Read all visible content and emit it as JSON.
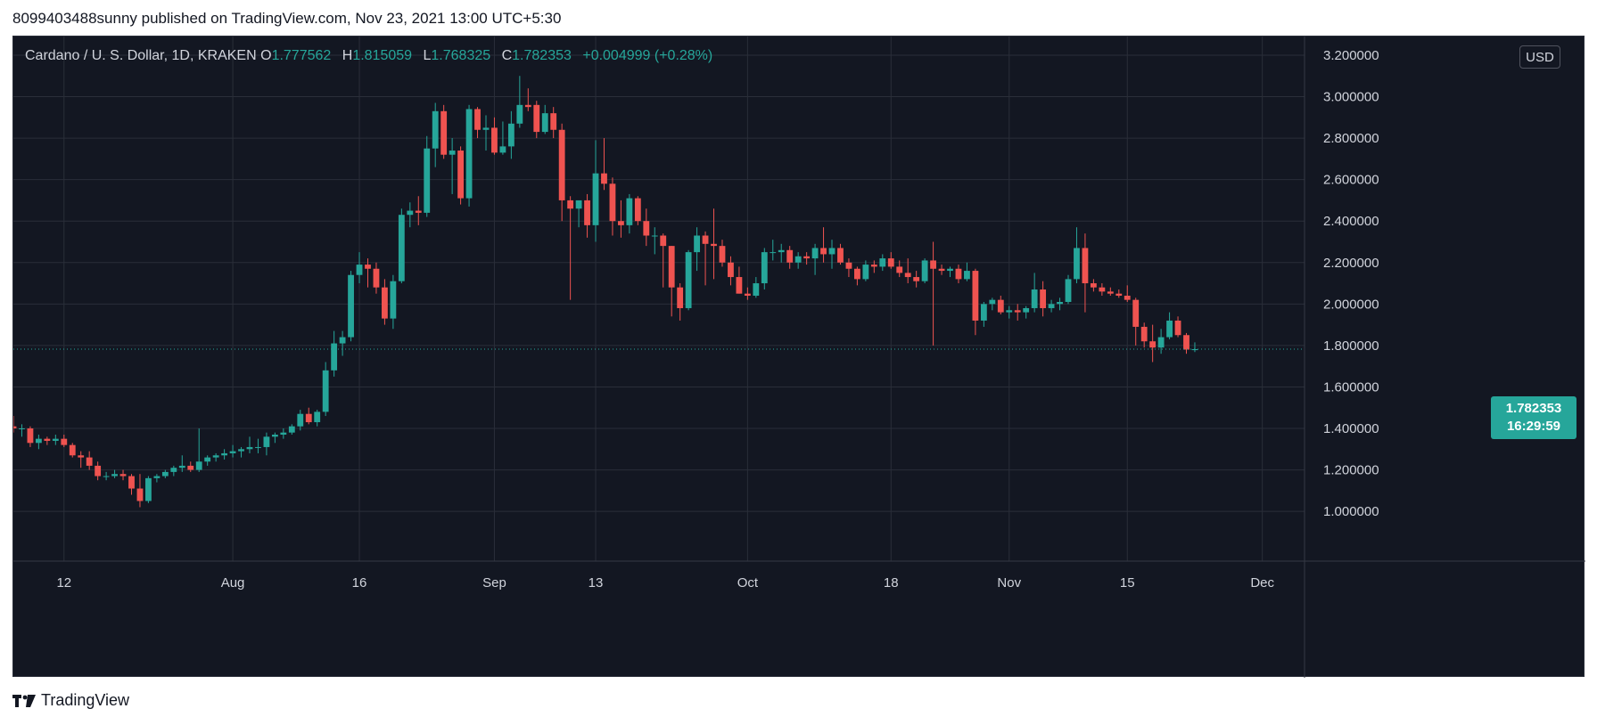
{
  "header": {
    "publish_text": "8099403488sunny published on TradingView.com, Nov 23, 2021 13:00 UTC+5:30"
  },
  "legend": {
    "symbol": "Cardano / U. S. Dollar, 1D, KRAKEN",
    "open_label": "O",
    "open": "1.777562",
    "high_label": "H",
    "high": "1.815059",
    "low_label": "L",
    "low": "1.768325",
    "close_label": "C",
    "close": "1.782353",
    "change": "+0.004999 (+0.28%)"
  },
  "currency_button": "USD",
  "last_price": {
    "price": "1.782353",
    "countdown": "16:29:59"
  },
  "footer": {
    "brand": "TradingView"
  },
  "colors": {
    "background": "#131722",
    "grid": "#2a2e39",
    "up": "#26a69a",
    "down": "#ef5350",
    "text": "#d1d4dc"
  },
  "chart_data": {
    "type": "candlestick",
    "y_tick_labels": [
      "1.000000",
      "1.200000",
      "1.400000",
      "1.600000",
      "1.800000",
      "2.000000",
      "2.200000",
      "2.400000",
      "2.600000",
      "2.800000",
      "3.000000",
      "3.200000"
    ],
    "y_ticks": [
      1.0,
      1.2,
      1.4,
      1.6,
      1.8,
      2.0,
      2.2,
      2.4,
      2.6,
      2.8,
      3.0,
      3.2
    ],
    "ylim": [
      0.76,
      3.29
    ],
    "x_labels": [
      {
        "date": "2021-07-12",
        "label": "12"
      },
      {
        "date": "2021-08-01",
        "label": "Aug"
      },
      {
        "date": "2021-08-16",
        "label": "16"
      },
      {
        "date": "2021-09-01",
        "label": "Sep"
      },
      {
        "date": "2021-09-13",
        "label": "13"
      },
      {
        "date": "2021-10-01",
        "label": "Oct"
      },
      {
        "date": "2021-10-18",
        "label": "18"
      },
      {
        "date": "2021-11-01",
        "label": "Nov"
      },
      {
        "date": "2021-11-15",
        "label": "15"
      },
      {
        "date": "2021-12-01",
        "label": "Dec"
      }
    ],
    "xlim": [
      "2021-07-06",
      "2021-12-06"
    ],
    "candles": [
      [
        "2021-07-06",
        1.41,
        1.46,
        1.38,
        1.4
      ],
      [
        "2021-07-07",
        1.4,
        1.42,
        1.36,
        1.4
      ],
      [
        "2021-07-08",
        1.4,
        1.41,
        1.31,
        1.33
      ],
      [
        "2021-07-09",
        1.33,
        1.37,
        1.3,
        1.35
      ],
      [
        "2021-07-10",
        1.35,
        1.36,
        1.32,
        1.34
      ],
      [
        "2021-07-11",
        1.34,
        1.37,
        1.32,
        1.35
      ],
      [
        "2021-07-12",
        1.35,
        1.37,
        1.31,
        1.32
      ],
      [
        "2021-07-13",
        1.32,
        1.33,
        1.26,
        1.27
      ],
      [
        "2021-07-14",
        1.27,
        1.29,
        1.21,
        1.26
      ],
      [
        "2021-07-15",
        1.26,
        1.29,
        1.2,
        1.22
      ],
      [
        "2021-07-16",
        1.22,
        1.24,
        1.15,
        1.17
      ],
      [
        "2021-07-17",
        1.17,
        1.19,
        1.15,
        1.17
      ],
      [
        "2021-07-18",
        1.17,
        1.2,
        1.16,
        1.18
      ],
      [
        "2021-07-19",
        1.18,
        1.2,
        1.15,
        1.17
      ],
      [
        "2021-07-20",
        1.17,
        1.18,
        1.08,
        1.11
      ],
      [
        "2021-07-21",
        1.11,
        1.18,
        1.02,
        1.05
      ],
      [
        "2021-07-22",
        1.05,
        1.17,
        1.04,
        1.16
      ],
      [
        "2021-07-23",
        1.16,
        1.18,
        1.14,
        1.17
      ],
      [
        "2021-07-24",
        1.17,
        1.2,
        1.16,
        1.19
      ],
      [
        "2021-07-25",
        1.19,
        1.22,
        1.17,
        1.21
      ],
      [
        "2021-07-26",
        1.21,
        1.27,
        1.19,
        1.22
      ],
      [
        "2021-07-27",
        1.22,
        1.24,
        1.19,
        1.2
      ],
      [
        "2021-07-28",
        1.2,
        1.4,
        1.19,
        1.24
      ],
      [
        "2021-07-29",
        1.24,
        1.27,
        1.22,
        1.26
      ],
      [
        "2021-07-30",
        1.26,
        1.28,
        1.24,
        1.27
      ],
      [
        "2021-07-31",
        1.27,
        1.3,
        1.25,
        1.28
      ],
      [
        "2021-08-01",
        1.28,
        1.32,
        1.26,
        1.29
      ],
      [
        "2021-08-02",
        1.29,
        1.31,
        1.26,
        1.3
      ],
      [
        "2021-08-03",
        1.3,
        1.36,
        1.28,
        1.31
      ],
      [
        "2021-08-04",
        1.31,
        1.35,
        1.28,
        1.31
      ],
      [
        "2021-08-05",
        1.31,
        1.38,
        1.27,
        1.36
      ],
      [
        "2021-08-06",
        1.36,
        1.38,
        1.33,
        1.37
      ],
      [
        "2021-08-07",
        1.37,
        1.4,
        1.35,
        1.38
      ],
      [
        "2021-08-08",
        1.38,
        1.42,
        1.37,
        1.41
      ],
      [
        "2021-08-09",
        1.41,
        1.49,
        1.39,
        1.47
      ],
      [
        "2021-08-10",
        1.47,
        1.5,
        1.42,
        1.43
      ],
      [
        "2021-08-11",
        1.43,
        1.49,
        1.41,
        1.48
      ],
      [
        "2021-08-12",
        1.48,
        1.72,
        1.46,
        1.68
      ],
      [
        "2021-08-13",
        1.68,
        1.87,
        1.65,
        1.81
      ],
      [
        "2021-08-14",
        1.81,
        1.87,
        1.75,
        1.84
      ],
      [
        "2021-08-15",
        1.84,
        2.16,
        1.82,
        2.14
      ],
      [
        "2021-08-16",
        2.14,
        2.25,
        2.1,
        2.19
      ],
      [
        "2021-08-17",
        2.19,
        2.22,
        2.08,
        2.17
      ],
      [
        "2021-08-18",
        2.17,
        2.2,
        2.05,
        2.08
      ],
      [
        "2021-08-19",
        2.08,
        2.12,
        1.9,
        1.93
      ],
      [
        "2021-08-20",
        1.93,
        2.14,
        1.88,
        2.11
      ],
      [
        "2021-08-21",
        2.11,
        2.46,
        2.1,
        2.43
      ],
      [
        "2021-08-22",
        2.43,
        2.49,
        2.37,
        2.45
      ],
      [
        "2021-08-23",
        2.45,
        2.52,
        2.38,
        2.44
      ],
      [
        "2021-08-24",
        2.44,
        2.81,
        2.42,
        2.75
      ],
      [
        "2021-08-25",
        2.75,
        2.97,
        2.66,
        2.93
      ],
      [
        "2021-08-26",
        2.93,
        2.96,
        2.7,
        2.72
      ],
      [
        "2021-08-27",
        2.72,
        2.8,
        2.53,
        2.74
      ],
      [
        "2021-08-28",
        2.74,
        2.76,
        2.48,
        2.51
      ],
      [
        "2021-08-29",
        2.51,
        2.96,
        2.47,
        2.94
      ],
      [
        "2021-08-30",
        2.94,
        2.95,
        2.8,
        2.84
      ],
      [
        "2021-08-31",
        2.84,
        2.91,
        2.74,
        2.85
      ],
      [
        "2021-09-01",
        2.85,
        2.9,
        2.72,
        2.73
      ],
      [
        "2021-09-02",
        2.73,
        2.88,
        2.72,
        2.76
      ],
      [
        "2021-09-03",
        2.76,
        2.93,
        2.7,
        2.87
      ],
      [
        "2021-09-04",
        2.87,
        3.1,
        2.85,
        2.96
      ],
      [
        "2021-09-05",
        2.96,
        3.04,
        2.93,
        2.95
      ],
      [
        "2021-09-06",
        2.96,
        2.98,
        2.8,
        2.83
      ],
      [
        "2021-09-07",
        2.83,
        2.96,
        2.82,
        2.92
      ],
      [
        "2021-09-08",
        2.92,
        2.95,
        2.8,
        2.84
      ],
      [
        "2021-09-09",
        2.84,
        2.87,
        2.4,
        2.5
      ],
      [
        "2021-09-10",
        2.5,
        2.52,
        2.02,
        2.46
      ],
      [
        "2021-09-11",
        2.46,
        2.49,
        2.37,
        2.5
      ],
      [
        "2021-09-12",
        2.5,
        2.53,
        2.32,
        2.38
      ],
      [
        "2021-09-13",
        2.38,
        2.79,
        2.3,
        2.63
      ],
      [
        "2021-09-14",
        2.63,
        2.8,
        2.55,
        2.58
      ],
      [
        "2021-09-15",
        2.58,
        2.61,
        2.33,
        2.4
      ],
      [
        "2021-09-16",
        2.4,
        2.5,
        2.32,
        2.38
      ],
      [
        "2021-09-17",
        2.38,
        2.53,
        2.34,
        2.51
      ],
      [
        "2021-09-18",
        2.51,
        2.52,
        2.38,
        2.4
      ],
      [
        "2021-09-19",
        2.4,
        2.46,
        2.28,
        2.33
      ],
      [
        "2021-09-20",
        2.33,
        2.37,
        2.24,
        2.33
      ],
      [
        "2021-09-21",
        2.33,
        2.34,
        2.08,
        2.28
      ],
      [
        "2021-09-22",
        2.28,
        2.28,
        1.94,
        2.08
      ],
      [
        "2021-09-23",
        2.08,
        2.1,
        1.92,
        1.98
      ],
      [
        "2021-09-24",
        1.98,
        2.26,
        1.97,
        2.25
      ],
      [
        "2021-09-25",
        2.25,
        2.37,
        2.16,
        2.33
      ],
      [
        "2021-09-26",
        2.33,
        2.35,
        2.09,
        2.29
      ],
      [
        "2021-09-27",
        2.29,
        2.46,
        2.12,
        2.28
      ],
      [
        "2021-09-28",
        2.28,
        2.31,
        2.18,
        2.2
      ],
      [
        "2021-09-29",
        2.2,
        2.23,
        2.09,
        2.13
      ],
      [
        "2021-09-30",
        2.13,
        2.18,
        2.05,
        2.05
      ],
      [
        "2021-10-01",
        2.05,
        2.08,
        2.02,
        2.04
      ],
      [
        "2021-10-02",
        2.04,
        2.13,
        2.03,
        2.1
      ],
      [
        "2021-10-03",
        2.1,
        2.27,
        2.07,
        2.25
      ],
      [
        "2021-10-04",
        2.25,
        2.31,
        2.21,
        2.25
      ],
      [
        "2021-10-05",
        2.25,
        2.29,
        2.2,
        2.26
      ],
      [
        "2021-10-06",
        2.26,
        2.28,
        2.17,
        2.2
      ],
      [
        "2021-10-07",
        2.2,
        2.25,
        2.17,
        2.23
      ],
      [
        "2021-10-08",
        2.23,
        2.25,
        2.19,
        2.22
      ],
      [
        "2021-10-09",
        2.22,
        2.29,
        2.14,
        2.27
      ],
      [
        "2021-10-10",
        2.27,
        2.37,
        2.2,
        2.24
      ],
      [
        "2021-10-11",
        2.24,
        2.31,
        2.17,
        2.27
      ],
      [
        "2021-10-12",
        2.27,
        2.29,
        2.19,
        2.2
      ],
      [
        "2021-10-13",
        2.2,
        2.22,
        2.13,
        2.17
      ],
      [
        "2021-10-14",
        2.17,
        2.18,
        2.09,
        2.12
      ],
      [
        "2021-10-15",
        2.12,
        2.21,
        2.11,
        2.19
      ],
      [
        "2021-10-16",
        2.19,
        2.21,
        2.15,
        2.18
      ],
      [
        "2021-10-17",
        2.18,
        2.24,
        2.16,
        2.22
      ],
      [
        "2021-10-18",
        2.22,
        2.25,
        2.17,
        2.18
      ],
      [
        "2021-10-19",
        2.18,
        2.21,
        2.13,
        2.15
      ],
      [
        "2021-10-20",
        2.15,
        2.22,
        2.1,
        2.13
      ],
      [
        "2021-10-21",
        2.13,
        2.16,
        2.08,
        2.11
      ],
      [
        "2021-10-22",
        2.11,
        2.22,
        2.1,
        2.21
      ],
      [
        "2021-10-23",
        2.21,
        2.3,
        1.8,
        2.17
      ],
      [
        "2021-10-24",
        2.17,
        2.19,
        2.14,
        2.16
      ],
      [
        "2021-10-25",
        2.16,
        2.18,
        2.13,
        2.17
      ],
      [
        "2021-10-26",
        2.17,
        2.19,
        2.1,
        2.12
      ],
      [
        "2021-10-27",
        2.12,
        2.2,
        2.11,
        2.16
      ],
      [
        "2021-10-28",
        2.16,
        2.17,
        1.85,
        1.92
      ],
      [
        "2021-10-29",
        1.92,
        2.01,
        1.89,
        2.0
      ],
      [
        "2021-10-30",
        2.0,
        2.03,
        1.97,
        2.02
      ],
      [
        "2021-10-31",
        2.02,
        2.04,
        1.95,
        1.96
      ],
      [
        "2021-11-01",
        1.96,
        1.99,
        1.93,
        1.97
      ],
      [
        "2021-11-02",
        1.97,
        2.0,
        1.92,
        1.96
      ],
      [
        "2021-11-03",
        1.96,
        1.99,
        1.93,
        1.98
      ],
      [
        "2021-11-04",
        1.98,
        2.15,
        1.96,
        2.07
      ],
      [
        "2021-11-05",
        2.07,
        2.11,
        1.94,
        1.98
      ],
      [
        "2021-11-06",
        1.98,
        2.02,
        1.96,
        2.0
      ],
      [
        "2021-11-07",
        2.0,
        2.03,
        1.97,
        2.01
      ],
      [
        "2021-11-08",
        2.01,
        2.14,
        2.0,
        2.12
      ],
      [
        "2021-11-09",
        2.12,
        2.37,
        2.1,
        2.27
      ],
      [
        "2021-11-10",
        2.27,
        2.34,
        1.96,
        2.1
      ],
      [
        "2021-11-11",
        2.1,
        2.12,
        2.06,
        2.08
      ],
      [
        "2021-11-12",
        2.08,
        2.1,
        2.04,
        2.06
      ],
      [
        "2021-11-13",
        2.06,
        2.08,
        2.04,
        2.05
      ],
      [
        "2021-11-14",
        2.05,
        2.07,
        2.03,
        2.04
      ],
      [
        "2021-11-15",
        2.04,
        2.09,
        2.01,
        2.02
      ],
      [
        "2021-11-16",
        2.02,
        2.03,
        1.8,
        1.89
      ],
      [
        "2021-11-17",
        1.89,
        1.91,
        1.79,
        1.82
      ],
      [
        "2021-11-18",
        1.82,
        1.9,
        1.72,
        1.79
      ],
      [
        "2021-11-19",
        1.79,
        1.88,
        1.76,
        1.84
      ],
      [
        "2021-11-20",
        1.84,
        1.96,
        1.83,
        1.92
      ],
      [
        "2021-11-21",
        1.92,
        1.94,
        1.84,
        1.85
      ],
      [
        "2021-11-22",
        1.85,
        1.86,
        1.76,
        1.78
      ],
      [
        "2021-11-23",
        1.777562,
        1.815059,
        1.768325,
        1.782353
      ]
    ]
  }
}
